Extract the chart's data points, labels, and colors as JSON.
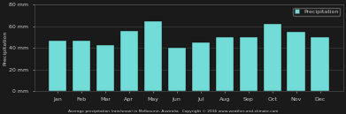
{
  "months": [
    "Jan",
    "Feb",
    "Mar",
    "Apr",
    "May",
    "Jun",
    "Jul",
    "Aug",
    "Sep",
    "Oct",
    "Nov",
    "Dec"
  ],
  "values": [
    47,
    47,
    43,
    56,
    65,
    40,
    45,
    50,
    50,
    62,
    55,
    50
  ],
  "bar_color": "#72ddd8",
  "bar_edge_color": "#111111",
  "bar_edge_width": 0.3,
  "background_color": "#1a1a1a",
  "axes_bg_color": "#1a1a1a",
  "text_color": "#cccccc",
  "ylabel": "Precipitation",
  "ylim": [
    0,
    80
  ],
  "yticks": [
    0,
    20,
    40,
    60,
    80
  ],
  "ytick_labels": [
    "0 mm",
    "20 mm",
    "40 mm",
    "60 mm",
    "80 mm"
  ],
  "xlabel_bottom": "Average precipitation (rain/snow) in Melbourne, Australia   Copyright © 2016 www.weather-and-climate.com",
  "legend_label": "Precipitation",
  "legend_color": "#72ddd8",
  "tick_fontsize": 4.5,
  "ylabel_fontsize": 4.5,
  "grid_color": "#444444",
  "spine_color": "#555555",
  "legend_bg": "#1a1a1a",
  "legend_edge": "#555555"
}
